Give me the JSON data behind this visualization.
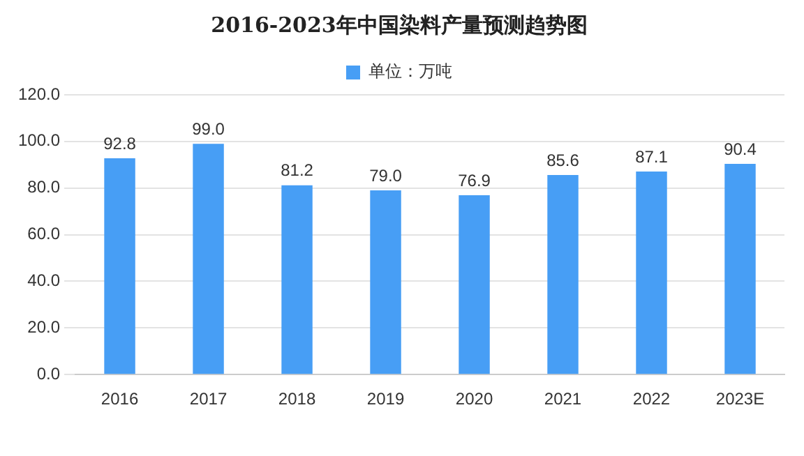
{
  "chart_data": {
    "type": "bar",
    "title": "2016-2023年中国染料产量预测趋势图",
    "categories": [
      "2016",
      "2017",
      "2018",
      "2019",
      "2020",
      "2021",
      "2022",
      "2023E"
    ],
    "series": [
      {
        "name": "单位：万吨",
        "color": "#479ef5",
        "values": [
          92.8,
          99.0,
          81.2,
          79.0,
          76.9,
          85.6,
          87.1,
          90.4
        ]
      }
    ],
    "value_labels": [
      "92.8",
      "99.0",
      "81.2",
      "79.0",
      "76.9",
      "85.6",
      "87.1",
      "90.4"
    ],
    "ylim": [
      0,
      120
    ],
    "yticks": [
      {
        "value": 0,
        "label": "0.0"
      },
      {
        "value": 20,
        "label": "20.0"
      },
      {
        "value": 40,
        "label": "40.0"
      },
      {
        "value": 60,
        "label": "60.0"
      },
      {
        "value": 80,
        "label": "80.0"
      },
      {
        "value": 100,
        "label": "100.0"
      },
      {
        "value": 120,
        "label": "120.0"
      }
    ],
    "grid": "y",
    "legend": "top"
  }
}
